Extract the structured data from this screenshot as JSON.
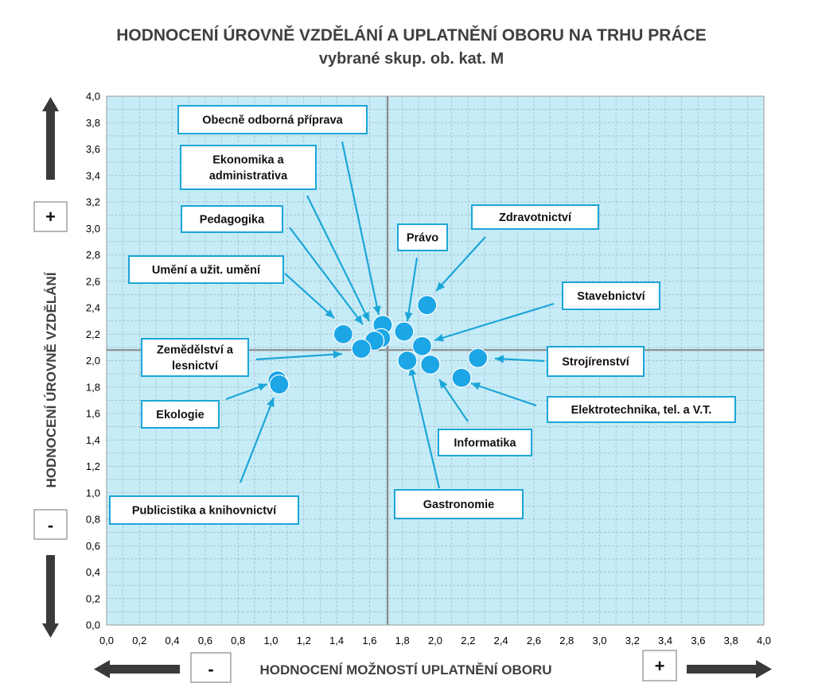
{
  "chart_data": {
    "type": "scatter",
    "title": "HODNOCENÍ ÚROVNĚ VZDĚLÁNÍ A UPLATNĚNÍ OBORU NA TRHU PRÁCE",
    "subtitle": "vybrané skup. ob. kat. M",
    "xlabel": "HODNOCENÍ MOŽNOSTÍ UPLATNĚNÍ OBORU",
    "ylabel": "HODNOCENÍ ÚROVNĚ VZDĚLÁNÍ",
    "xlim": [
      0,
      4
    ],
    "ylim": [
      0,
      4
    ],
    "x_ticks": [
      "0,0",
      "0,2",
      "0,4",
      "0,6",
      "0,8",
      "1,0",
      "1,2",
      "1,4",
      "1,6",
      "1,8",
      "2,0",
      "2,2",
      "2,4",
      "2,6",
      "2,8",
      "3,0",
      "3,2",
      "3,4",
      "3,6",
      "3,8",
      "4,0"
    ],
    "y_ticks": [
      "0,0",
      "0,2",
      "0,4",
      "0,6",
      "0,8",
      "1,0",
      "1,2",
      "1,4",
      "1,6",
      "1,8",
      "2,0",
      "2,2",
      "2,4",
      "2,6",
      "2,8",
      "3,0",
      "3,2",
      "3,4",
      "3,6",
      "3,8",
      "4,0"
    ],
    "grid": true,
    "crosshair": {
      "x": 1.71,
      "y": 2.08
    },
    "point_color": "#1ca6e6",
    "background_color": "#c6ecf8",
    "points": [
      {
        "name": "Obecně odborná příprava",
        "x": 1.68,
        "y": 2.27
      },
      {
        "name": "Ekonomika a administrativa",
        "x": 1.67,
        "y": 2.17
      },
      {
        "name": "Pedagogika",
        "x": 1.63,
        "y": 2.15
      },
      {
        "name": "Umění a užit. umění",
        "x": 1.44,
        "y": 2.2
      },
      {
        "name": "Zemědělství a lesnictví",
        "x": 1.55,
        "y": 2.09
      },
      {
        "name": "Ekologie",
        "x": 1.04,
        "y": 1.85
      },
      {
        "name": "Publicistika a knihovnictví",
        "x": 1.05,
        "y": 1.82
      },
      {
        "name": "Právo",
        "x": 1.81,
        "y": 2.22
      },
      {
        "name": "Zdravotnictví",
        "x": 1.95,
        "y": 2.42
      },
      {
        "name": "Stavebnictví",
        "x": 1.92,
        "y": 2.11
      },
      {
        "name": "Strojírenství",
        "x": 2.26,
        "y": 2.02
      },
      {
        "name": "Elektrotechnika, tel. a V.T.",
        "x": 2.16,
        "y": 1.87
      },
      {
        "name": "Informatika",
        "x": 1.97,
        "y": 1.97
      },
      {
        "name": "Gastronomie",
        "x": 1.83,
        "y": 2.0
      }
    ]
  },
  "callouts": [
    {
      "lines": [
        "Obecně odborná příprava"
      ]
    },
    {
      "lines": [
        "Ekonomika a",
        "administrativa"
      ]
    },
    {
      "lines": [
        "Pedagogika"
      ]
    },
    {
      "lines": [
        "Umění a užit. umění"
      ]
    },
    {
      "lines": [
        "Zemědělství a",
        "lesnictví"
      ]
    },
    {
      "lines": [
        "Ekologie"
      ]
    },
    {
      "lines": [
        "Publicistika a knihovnictví"
      ]
    },
    {
      "lines": [
        "Právo"
      ]
    },
    {
      "lines": [
        "Zdravotnictví"
      ]
    },
    {
      "lines": [
        "Stavebnictví"
      ]
    },
    {
      "lines": [
        "Strojírenství"
      ]
    },
    {
      "lines": [
        "Elektrotechnika, tel. a V.T."
      ]
    },
    {
      "lines": [
        "Informatika"
      ]
    },
    {
      "lines": [
        "Gastronomie"
      ]
    }
  ],
  "signs": {
    "y_plus": "+",
    "y_minus": "-",
    "x_minus": "-",
    "x_plus": "+"
  }
}
